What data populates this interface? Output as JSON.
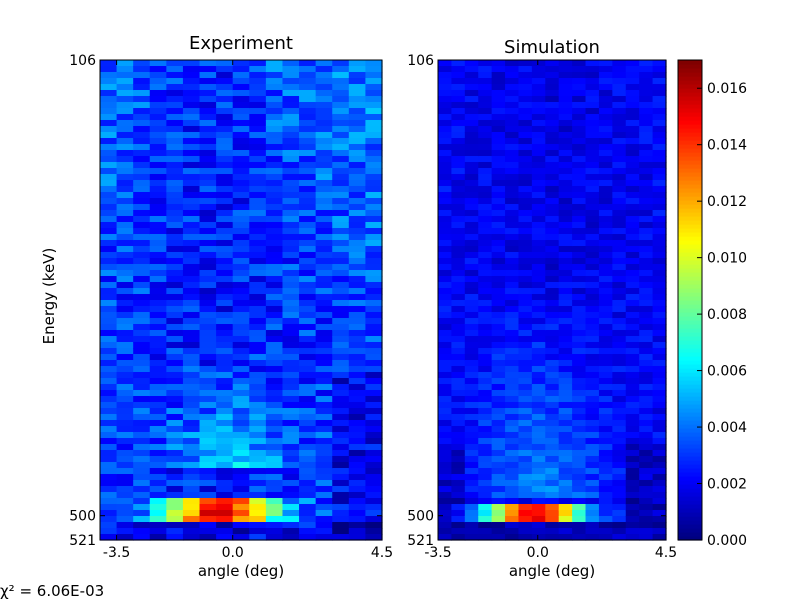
{
  "chart_data": [
    {
      "type": "heatmap",
      "title": "Experiment",
      "xlabel": "angle (deg)",
      "ylabel": "Energy (keV)",
      "x_ticks": [
        "-3.5",
        "0.0",
        "4.5"
      ],
      "x_tick_values": [
        -3.5,
        0.0,
        4.5
      ],
      "xlim": [
        -4.0,
        4.5
      ],
      "y_ticks": [
        "106",
        "500",
        "521"
      ],
      "y_tick_values": [
        106,
        500,
        521
      ],
      "ylim": [
        106,
        521
      ],
      "y_inverted": true,
      "colormap": "jet",
      "description_values": {
        "x_bins": 17,
        "y_bins": 80,
        "peak_energy_keV": 504,
        "peak_angle_range_deg": [
          -2.5,
          2.0
        ]
      }
    },
    {
      "type": "heatmap",
      "title": "Simulation",
      "xlabel": "angle (deg)",
      "ylabel": "",
      "x_ticks": [
        "-3.5",
        "0.0",
        "4.5"
      ],
      "x_tick_values": [
        -3.5,
        0.0,
        4.5
      ],
      "xlim": [
        -3.5,
        4.5
      ],
      "y_ticks": [
        "106",
        "500",
        "521"
      ],
      "y_tick_values": [
        106,
        500,
        521
      ],
      "ylim": [
        106,
        521
      ],
      "y_inverted": true,
      "colormap": "jet",
      "description_values": {
        "x_bins": 17,
        "y_bins": 80,
        "peak_energy_keV": 500,
        "peak_angle_range_deg": [
          -2.0,
          2.0
        ]
      }
    }
  ],
  "colorbar": {
    "colormap": "jet",
    "range": [
      0.0,
      0.017
    ],
    "ticks": [
      "0.000",
      "0.002",
      "0.004",
      "0.006",
      "0.008",
      "0.010",
      "0.012",
      "0.014",
      "0.016"
    ],
    "tick_values": [
      0.0,
      0.002,
      0.004,
      0.006,
      0.008,
      0.01,
      0.012,
      0.014,
      0.016
    ]
  },
  "footer": {
    "chi_text": "χ² = 6.06E-03"
  }
}
